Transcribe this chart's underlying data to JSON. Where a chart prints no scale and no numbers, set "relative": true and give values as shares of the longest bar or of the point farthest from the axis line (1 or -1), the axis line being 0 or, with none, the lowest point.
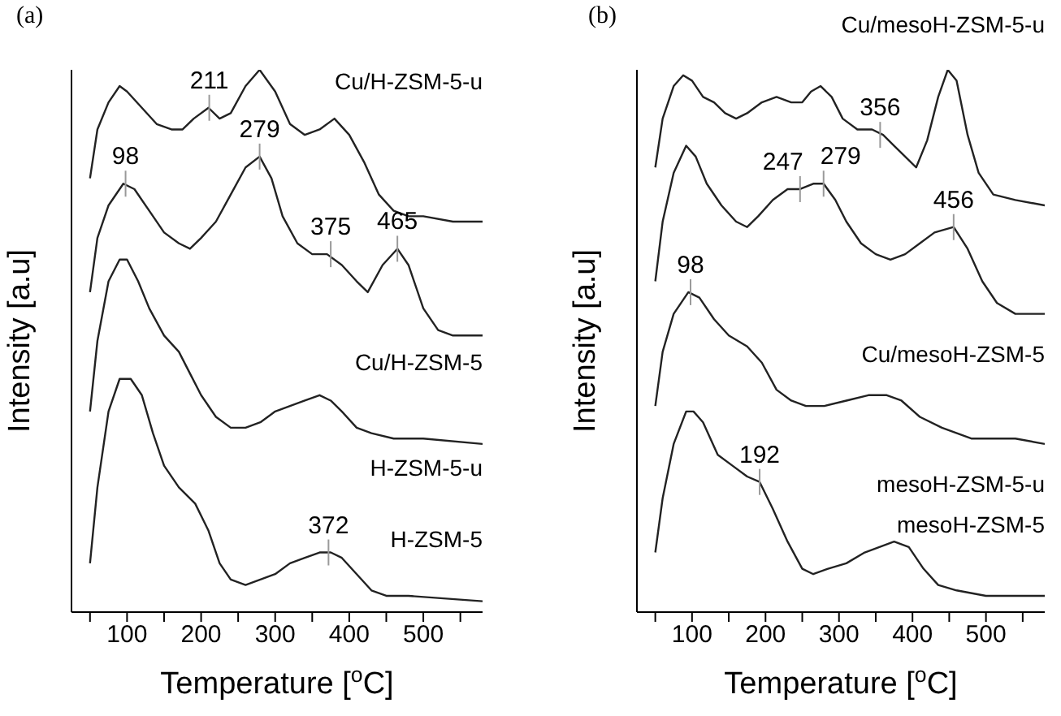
{
  "chart_data": [
    {
      "type": "line",
      "title": "(a)",
      "xlabel": "Temperature [$^{o}$C]",
      "ylabel": "Intensity [a.u]",
      "relative": true,
      "marker": "none",
      "line_style": "solid",
      "xlim": [
        25,
        580
      ],
      "xticks": [
        {
          "value": 50,
          "label": null
        },
        100,
        {
          "value": 150,
          "label": null
        },
        200,
        {
          "value": 250,
          "label": null
        },
        300,
        {
          "value": 350,
          "label": null
        },
        400,
        {
          "value": 450,
          "label": null
        },
        500,
        {
          "value": 550,
          "label": null
        }
      ],
      "series": [
        {
          "name": "Cu/H-ZSM-5-u",
          "color": "#222222",
          "x": [
            50,
            60,
            75,
            90,
            100,
            120,
            140,
            160,
            175,
            190,
            210,
            225,
            240,
            260,
            279,
            300,
            320,
            340,
            360,
            380,
            400,
            420,
            440,
            460,
            480,
            500,
            540,
            580
          ],
          "values": [
            0.8,
            0.89,
            0.94,
            0.97,
            0.96,
            0.93,
            0.9,
            0.89,
            0.89,
            0.91,
            0.93,
            0.91,
            0.92,
            0.97,
            1.0,
            0.96,
            0.9,
            0.88,
            0.89,
            0.91,
            0.88,
            0.83,
            0.77,
            0.74,
            0.73,
            0.73,
            0.72,
            0.72
          ]
        },
        {
          "name": "Cu/H-ZSM-5",
          "color": "#222222",
          "x": [
            50,
            60,
            75,
            95,
            110,
            130,
            150,
            170,
            185,
            200,
            220,
            240,
            260,
            279,
            295,
            310,
            330,
            350,
            370,
            390,
            410,
            425,
            445,
            465,
            480,
            500,
            520,
            540,
            580
          ],
          "values": [
            0.59,
            0.69,
            0.75,
            0.79,
            0.78,
            0.74,
            0.7,
            0.68,
            0.67,
            0.69,
            0.72,
            0.77,
            0.82,
            0.84,
            0.8,
            0.73,
            0.68,
            0.66,
            0.66,
            0.64,
            0.61,
            0.59,
            0.64,
            0.67,
            0.64,
            0.56,
            0.52,
            0.51,
            0.51
          ]
        },
        {
          "name": "H-ZSM-5-u",
          "color": "#222222",
          "x": [
            50,
            60,
            75,
            90,
            100,
            115,
            130,
            150,
            170,
            185,
            200,
            220,
            240,
            260,
            280,
            300,
            320,
            340,
            360,
            375,
            390,
            410,
            430,
            460,
            500,
            580
          ],
          "values": [
            0.37,
            0.5,
            0.61,
            0.65,
            0.65,
            0.61,
            0.56,
            0.51,
            0.48,
            0.44,
            0.4,
            0.36,
            0.34,
            0.34,
            0.35,
            0.37,
            0.38,
            0.39,
            0.4,
            0.39,
            0.37,
            0.34,
            0.33,
            0.32,
            0.32,
            0.31
          ]
        },
        {
          "name": "H-ZSM-5",
          "color": "#222222",
          "x": [
            50,
            60,
            75,
            90,
            105,
            120,
            135,
            150,
            170,
            192,
            210,
            225,
            240,
            260,
            280,
            300,
            320,
            340,
            360,
            375,
            390,
            410,
            430,
            450,
            480,
            580
          ],
          "values": [
            0.09,
            0.23,
            0.37,
            0.43,
            0.43,
            0.4,
            0.33,
            0.27,
            0.23,
            0.2,
            0.15,
            0.09,
            0.06,
            0.05,
            0.06,
            0.07,
            0.09,
            0.1,
            0.11,
            0.11,
            0.1,
            0.07,
            0.04,
            0.03,
            0.03,
            0.02
          ]
        }
      ],
      "annotations": [
        {
          "text": "211",
          "x": 211,
          "y": 0.93
        },
        {
          "text": "279",
          "x": 279,
          "y": 0.84
        },
        {
          "text": "98",
          "x": 98,
          "y": 0.79
        },
        {
          "text": "375",
          "x": 375,
          "y": 0.66
        },
        {
          "text": "465",
          "x": 465,
          "y": 0.67
        },
        {
          "text": "372",
          "x": 372,
          "y": 0.11
        }
      ]
    },
    {
      "type": "line",
      "title": "(b)",
      "xlabel": "Temperature [$^{o}$C]",
      "ylabel": "Intensity [a.u]",
      "relative": true,
      "marker": "none",
      "line_style": "solid",
      "xlim": [
        25,
        580
      ],
      "xticks": [
        {
          "value": 50,
          "label": null
        },
        100,
        {
          "value": 150,
          "label": null
        },
        200,
        {
          "value": 250,
          "label": null
        },
        300,
        {
          "value": 350,
          "label": null
        },
        400,
        {
          "value": 450,
          "label": null
        },
        500,
        {
          "value": 550,
          "label": null
        }
      ],
      "series": [
        {
          "name": "Cu/mesoH-ZSM-5-u",
          "color": "#222222",
          "x": [
            50,
            60,
            75,
            88,
            100,
            115,
            130,
            145,
            160,
            175,
            195,
            215,
            235,
            250,
            262,
            275,
            290,
            305,
            325,
            345,
            360,
            375,
            390,
            405,
            420,
            435,
            448,
            460,
            475,
            490,
            510,
            540,
            580
          ],
          "values": [
            0.82,
            0.91,
            0.97,
            0.99,
            0.98,
            0.95,
            0.94,
            0.92,
            0.91,
            0.92,
            0.94,
            0.95,
            0.94,
            0.94,
            0.96,
            0.97,
            0.95,
            0.91,
            0.89,
            0.89,
            0.88,
            0.86,
            0.84,
            0.82,
            0.87,
            0.95,
            1.0,
            0.98,
            0.88,
            0.81,
            0.77,
            0.76,
            0.75
          ]
        },
        {
          "name": "Cu/mesoH-ZSM-5",
          "color": "#222222",
          "x": [
            50,
            60,
            75,
            92,
            105,
            120,
            140,
            160,
            175,
            190,
            210,
            230,
            247,
            265,
            279,
            295,
            310,
            330,
            350,
            370,
            390,
            410,
            430,
            456,
            475,
            495,
            515,
            540,
            580
          ],
          "values": [
            0.61,
            0.72,
            0.81,
            0.86,
            0.84,
            0.79,
            0.75,
            0.72,
            0.71,
            0.73,
            0.76,
            0.78,
            0.78,
            0.79,
            0.79,
            0.76,
            0.72,
            0.68,
            0.66,
            0.65,
            0.66,
            0.68,
            0.7,
            0.71,
            0.67,
            0.61,
            0.57,
            0.55,
            0.55
          ]
        },
        {
          "name": "mesoH-ZSM-5-u",
          "color": "#222222",
          "x": [
            50,
            60,
            75,
            95,
            110,
            130,
            150,
            175,
            195,
            215,
            235,
            255,
            280,
            310,
            340,
            365,
            385,
            410,
            440,
            480,
            540,
            580
          ],
          "values": [
            0.38,
            0.48,
            0.55,
            0.59,
            0.58,
            0.54,
            0.51,
            0.49,
            0.46,
            0.41,
            0.39,
            0.38,
            0.38,
            0.39,
            0.4,
            0.4,
            0.39,
            0.36,
            0.34,
            0.32,
            0.32,
            0.31
          ]
        },
        {
          "name": "mesoH-ZSM-5",
          "color": "#222222",
          "x": [
            50,
            60,
            75,
            92,
            102,
            115,
            135,
            155,
            175,
            192,
            210,
            230,
            250,
            265,
            285,
            310,
            335,
            355,
            375,
            395,
            415,
            435,
            460,
            500,
            580
          ],
          "values": [
            0.11,
            0.21,
            0.31,
            0.37,
            0.37,
            0.35,
            0.29,
            0.27,
            0.25,
            0.24,
            0.19,
            0.13,
            0.08,
            0.07,
            0.08,
            0.09,
            0.11,
            0.12,
            0.13,
            0.12,
            0.08,
            0.05,
            0.04,
            0.03,
            0.03
          ]
        }
      ],
      "annotations": [
        {
          "text": "356",
          "x": 356,
          "y": 0.88
        },
        {
          "text": "247",
          "x": 247,
          "y": 0.78
        },
        {
          "text": "279",
          "x": 279,
          "y": 0.79
        },
        {
          "text": "456",
          "x": 456,
          "y": 0.71
        },
        {
          "text": "98",
          "x": 98,
          "y": 0.59
        },
        {
          "text": "192",
          "x": 192,
          "y": 0.24
        }
      ]
    }
  ]
}
